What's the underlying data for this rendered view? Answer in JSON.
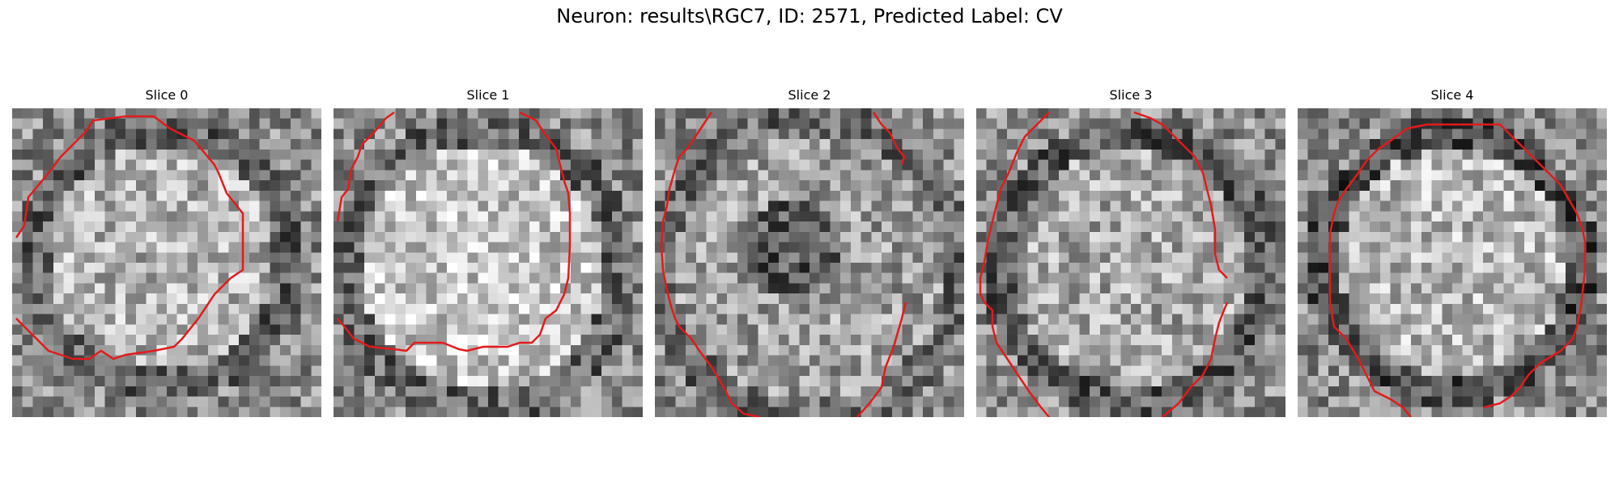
{
  "figure": {
    "title": "Neuron: results\\RGC7, ID: 2571, Predicted Label: CV"
  },
  "contour_color": "#e31a1c",
  "slices": [
    {
      "title": "Slice 0"
    },
    {
      "title": "Slice 1"
    },
    {
      "title": "Slice 2"
    },
    {
      "title": "Slice 3"
    },
    {
      "title": "Slice 4"
    }
  ]
}
